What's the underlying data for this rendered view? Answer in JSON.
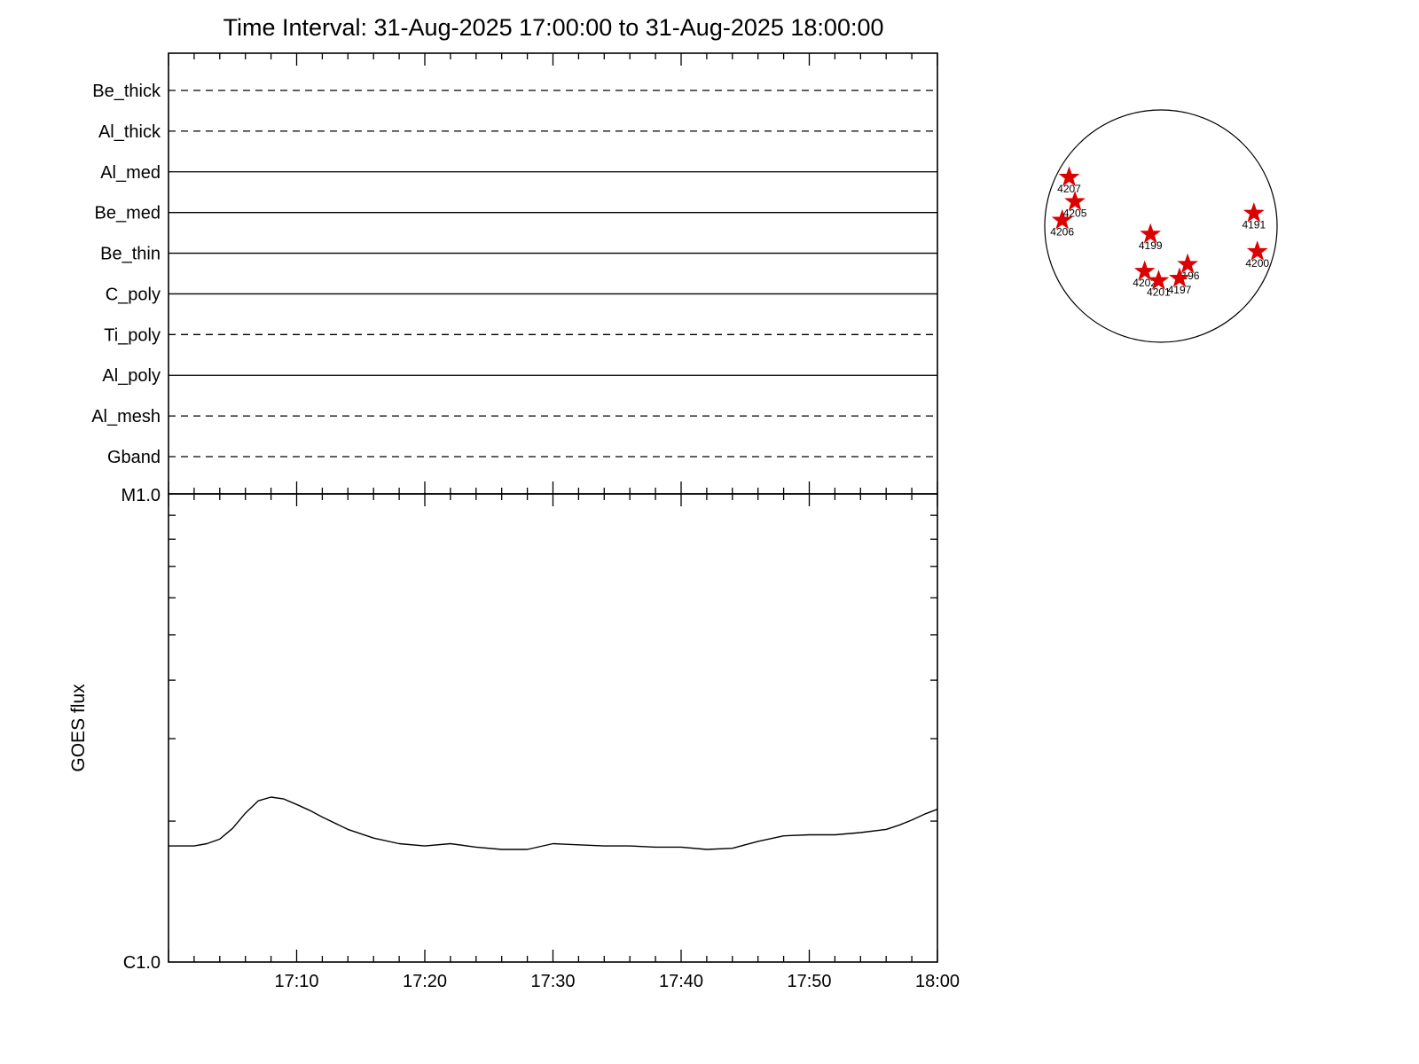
{
  "title": "Time Interval: 31-Aug-2025 17:00:00 to 31-Aug-2025 18:00:00",
  "colors": {
    "axis": "#000000",
    "star": "#dd0000",
    "background": "#ffffff"
  },
  "chart_data": [
    {
      "type": "line",
      "name": "xrt_filter_timeline",
      "categories": [
        "Be_thick",
        "Al_thick",
        "Al_med",
        "Be_med",
        "Be_thin",
        "C_poly",
        "Ti_poly",
        "Al_poly",
        "Al_mesh",
        "Gband"
      ],
      "line_styles": [
        "dashed",
        "dashed",
        "solid",
        "solid",
        "solid",
        "solid",
        "dashed",
        "solid",
        "dashed",
        "dashed"
      ],
      "x_range": [
        "17:00",
        "18:00"
      ],
      "grid": false
    },
    {
      "type": "line",
      "name": "goes_flux",
      "ylabel": "GOES flux",
      "y_scale": "log",
      "y_top_label": "M1.0",
      "y_bottom_label": "C1.0",
      "ylim_c": [
        1.0,
        10.0
      ],
      "x_tick_labels": [
        "17:10",
        "17:20",
        "17:30",
        "17:40",
        "17:50",
        "18:00"
      ],
      "x_tick_minutes": [
        10,
        20,
        30,
        40,
        50,
        60
      ],
      "x_minor_step_minutes": 2,
      "series": [
        {
          "name": "goes_flux",
          "x_minutes": [
            0,
            2,
            3,
            4,
            5,
            6,
            7,
            8,
            9,
            10,
            11,
            12,
            14,
            16,
            18,
            20,
            22,
            24,
            26,
            28,
            30,
            32,
            34,
            36,
            38,
            40,
            42,
            44,
            46,
            48,
            50,
            52,
            54,
            56,
            57,
            58,
            59,
            60
          ],
          "flux_c": [
            1.77,
            1.77,
            1.79,
            1.83,
            1.93,
            2.08,
            2.21,
            2.25,
            2.23,
            2.17,
            2.11,
            2.04,
            1.92,
            1.84,
            1.79,
            1.77,
            1.79,
            1.76,
            1.74,
            1.74,
            1.79,
            1.78,
            1.77,
            1.77,
            1.76,
            1.76,
            1.74,
            1.75,
            1.81,
            1.86,
            1.87,
            1.87,
            1.89,
            1.92,
            1.96,
            2.01,
            2.07,
            2.12
          ]
        }
      ]
    },
    {
      "type": "scatter",
      "name": "solar_disk_active_regions",
      "marker": "star",
      "regions": [
        {
          "label": "4207",
          "rx": -0.79,
          "ry": -0.42
        },
        {
          "label": "4205",
          "rx": -0.74,
          "ry": -0.21
        },
        {
          "label": "4206",
          "rx": -0.85,
          "ry": -0.05
        },
        {
          "label": "4199",
          "rx": -0.09,
          "ry": 0.07
        },
        {
          "label": "4191",
          "rx": 0.8,
          "ry": -0.11
        },
        {
          "label": "4200",
          "rx": 0.83,
          "ry": 0.22
        },
        {
          "label": "4202",
          "rx": -0.14,
          "ry": 0.39
        },
        {
          "label": "4201",
          "rx": -0.02,
          "ry": 0.47
        },
        {
          "label": "4196",
          "rx": 0.23,
          "ry": 0.33
        },
        {
          "label": "4197",
          "rx": 0.16,
          "ry": 0.45
        }
      ]
    }
  ]
}
